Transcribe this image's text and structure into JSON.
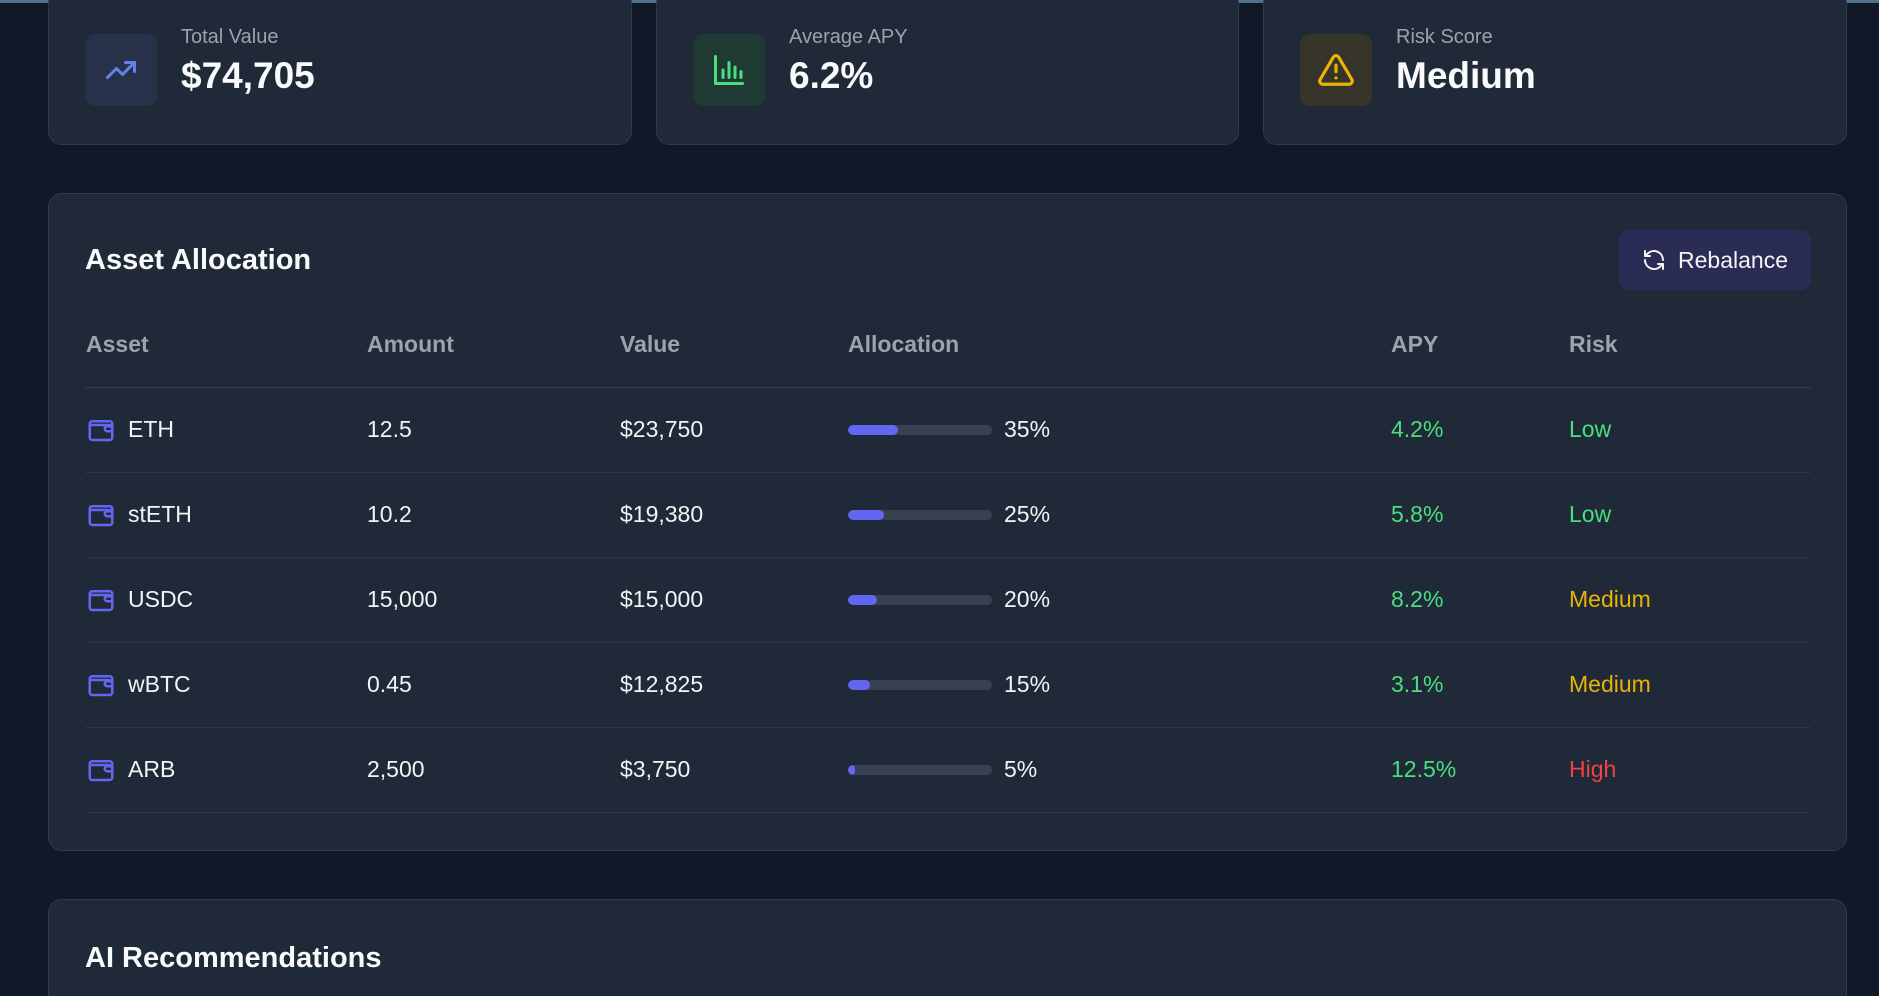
{
  "stats": [
    {
      "label": "Total Value",
      "value": "$74,705",
      "icon": "trending-up-icon",
      "color": "#6482ef"
    },
    {
      "label": "Average APY",
      "value": "6.2%",
      "icon": "bar-chart-icon",
      "color": "#4ade80"
    },
    {
      "label": "Risk Score",
      "value": "Medium",
      "icon": "alert-triangle-icon",
      "color": "#eab308"
    }
  ],
  "allocation": {
    "title": "Asset Allocation",
    "rebalance_label": "Rebalance",
    "columns": [
      "Asset",
      "Amount",
      "Value",
      "Allocation",
      "APY",
      "Risk"
    ],
    "rows": [
      {
        "asset": "ETH",
        "amount": "12.5",
        "value": "$23,750",
        "allocation": "35%",
        "allocation_pct": 35,
        "apy": "4.2%",
        "risk": "Low"
      },
      {
        "asset": "stETH",
        "amount": "10.2",
        "value": "$19,380",
        "allocation": "25%",
        "allocation_pct": 25,
        "apy": "5.8%",
        "risk": "Low"
      },
      {
        "asset": "USDC",
        "amount": "15,000",
        "value": "$15,000",
        "allocation": "20%",
        "allocation_pct": 20,
        "apy": "8.2%",
        "risk": "Medium"
      },
      {
        "asset": "wBTC",
        "amount": "0.45",
        "value": "$12,825",
        "allocation": "15%",
        "allocation_pct": 15,
        "apy": "3.1%",
        "risk": "Medium"
      },
      {
        "asset": "ARB",
        "amount": "2,500",
        "value": "$3,750",
        "allocation": "5%",
        "allocation_pct": 5,
        "apy": "12.5%",
        "risk": "High"
      }
    ]
  },
  "recommendations": {
    "title": "AI Recommendations"
  },
  "colors": {
    "accent": "#6366f1",
    "positive": "#4ade80",
    "warning": "#eab308",
    "danger": "#ef4444"
  }
}
